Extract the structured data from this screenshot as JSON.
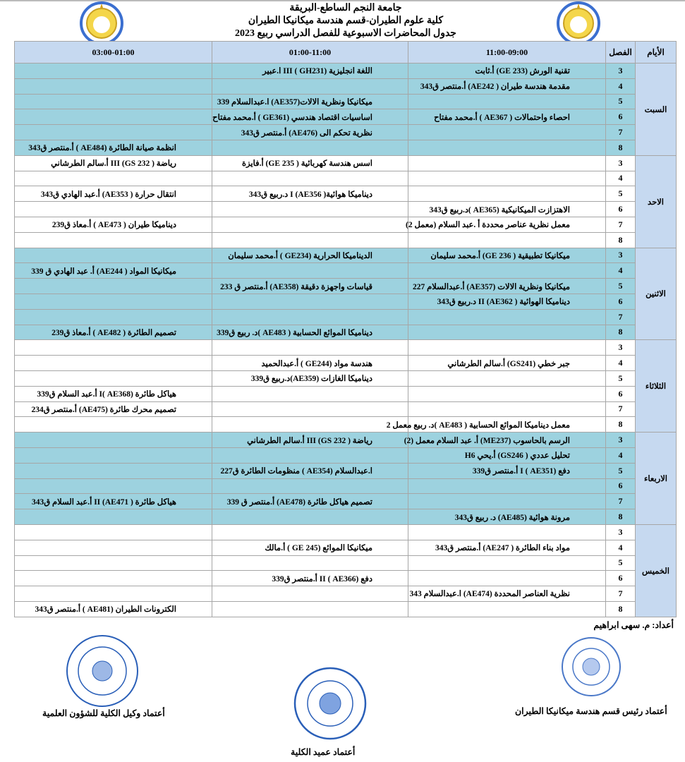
{
  "header": {
    "university": "جامعة النجم الساطع-البريقة",
    "faculty": "كلية علوم الطيران-قسم هندسة ميكانيكا الطيران",
    "title": "جدول المحاضرات الاسبوعية للفصل الدراسي ربيع 2023"
  },
  "table": {
    "headers": {
      "day": "الأيام",
      "period": "الفصل",
      "slot1": "11:00-09:00",
      "slot2": "01:00-11:00",
      "slot3": "03:00-01:00"
    },
    "days": [
      {
        "name": "السبت",
        "rows": [
          {
            "p": "3",
            "s1": "تقنية الورش (GE 233) أ.ثابت",
            "s2": "اللغة انجليزية (GH231 ) III ا.عبير",
            "s3": ""
          },
          {
            "p": "4",
            "s1": "مقدمة هندسة طيران ( AE242) أ.منتصر ق343",
            "s2": "",
            "s3": ""
          },
          {
            "p": "5",
            "s1": "",
            "s2": "ميكانيكا ونظرية الالات(AE357) ا.عبدالسلام 339",
            "s3": ""
          },
          {
            "p": "6",
            "s1": "احصاء واحتمالات ( AE367 ) أ.محمد مفتاح",
            "s2": "اساسيات اقتصاد هندسي (GE361 ) أ.محمد مفتاح",
            "s3": ""
          },
          {
            "p": "7",
            "s1": "",
            "s2": "نظرية تحكم الى (AE476) أ.منتصر ق343",
            "s3": ""
          },
          {
            "p": "8",
            "s1": "",
            "s2": "",
            "s3": "انظمة صيانة الطائرة (AE484 ) أ.منتصر ق343"
          }
        ]
      },
      {
        "name": "الاحد",
        "rows": [
          {
            "p": "3",
            "s1": "",
            "s2": "اسس هندسة كهربائية ( GE 235) أ.فايزة",
            "s3": "رياضة ( GS 232) III أ.سالم الطرشاني"
          },
          {
            "p": "4",
            "s1": "",
            "s2": "",
            "s3": ""
          },
          {
            "p": "5",
            "s1": "",
            "s2": "ديناميكا هوائية( AE356) I د.ربيع ق343",
            "s3": "انتقال حرارة ( AE353) أ.عبد الهادي ق343"
          },
          {
            "p": "6",
            "s1": "الاهتزازت الميكانيكية (AE365 )د.ربيع ق343",
            "s2": "",
            "s3": ""
          },
          {
            "p": "7",
            "s1": "معمل نظرية عناصر محددة أ .عبد السلام (معمل 2)",
            "s2": "",
            "s3": "ديناميكا طيران ( AE473 ) أ.معاذ ق239"
          },
          {
            "p": "8",
            "s1": "",
            "s2": "",
            "s3": ""
          }
        ]
      },
      {
        "name": "الاثنين",
        "rows": [
          {
            "p": "3",
            "s1": "ميكانيكا تطبيقية ( GE 236) أ.محمد سليمان",
            "s2": "الديناميكا الحرارية (GE234 ) أ.محمد سليمان",
            "s3": ""
          },
          {
            "p": "4",
            "s1": "",
            "s2": "",
            "s3": "ميكانيكا المواد ( AE244) أ. عبد الهادي ق 339"
          },
          {
            "p": "5",
            "s1": "ميكانيكا ونظرية الالات (AE357) أ.عبدالسلام 227",
            "s2": "قياسات واجهزة دقيقة (AE358) أ.منتصر ق 233",
            "s3": ""
          },
          {
            "p": "6",
            "s1": "ديناميكا الهوائية ( AE362) II د.ربيع ق343",
            "s2": "",
            "s3": ""
          },
          {
            "p": "7",
            "s1": "",
            "s2": "",
            "s3": ""
          },
          {
            "p": "8",
            "s1": "",
            "s2": "ديناميكا الموائع الحسابية ( AE483 )د. ربيع ق339",
            "s3": "تصميم الطائرة ( AE482 ) أ.معاذ ق239"
          }
        ]
      },
      {
        "name": "الثلاثاء",
        "rows": [
          {
            "p": "3",
            "s1": "",
            "s2": "",
            "s3": ""
          },
          {
            "p": "4",
            "s1": "جبر خطي (GS241) أ.سالم الطرشاني",
            "s2": "هندسة مواد (GE244 ) أ.عبدالحميد",
            "s3": ""
          },
          {
            "p": "5",
            "s1": "",
            "s2": "ديناميكا الغازات (AE359)د.ربيع ق339",
            "s3": ""
          },
          {
            "p": "6",
            "s1": "",
            "s2": "",
            "s3": "هياكل طائرة (AE368 )I أ.عبد السلام ق339"
          },
          {
            "p": "7",
            "s1": "",
            "s2": "",
            "s3": "تصميم محرك طائرة (AE475) أ.منتصر ق234"
          },
          {
            "p": "8",
            "s1": "معمل ديناميكا الموائع الحسابية ( AE483 )د. ربيع معمل 2",
            "s2": "",
            "s3": ""
          }
        ]
      },
      {
        "name": "الاربعاء",
        "rows": [
          {
            "p": "3",
            "s1": "الرسم بالحاسوب (ME237) أ. عبد السلام معمل (2)",
            "s2": "رياضة ( GS 232) III أ.سالم الطرشاني",
            "s3": ""
          },
          {
            "p": "4",
            "s1": "تحليل عددي ( GS246) أ.يحي H6",
            "s2": "",
            "s3": ""
          },
          {
            "p": "5",
            "s1": "دفع (AE351 ) I أ.منتصر ق339",
            "s2": "ا.عبدالسلام (AE354 ) منظومات الطائرة ق227",
            "s3": ""
          },
          {
            "p": "6",
            "s1": "",
            "s2": "",
            "s3": ""
          },
          {
            "p": "7",
            "s1": "",
            "s2": "تصميم هياكل طائرة (AE478) أ.منتصر ق 339",
            "s3": "هياكل طائرة ( AE471) II أ.عبد السلام ق343"
          },
          {
            "p": "8",
            "s1": "مرونة هوائية (AE485) د. ربيع ق343",
            "s2": "",
            "s3": ""
          }
        ]
      },
      {
        "name": "الخميس",
        "rows": [
          {
            "p": "3",
            "s1": "",
            "s2": "",
            "s3": ""
          },
          {
            "p": "4",
            "s1": "مواد بناء الطائرة ( AE247) أ.منتصر ق343",
            "s2": "ميكانيكا الموائع (GE 245 ) أ.مالك",
            "s3": ""
          },
          {
            "p": "5",
            "s1": "",
            "s2": "",
            "s3": ""
          },
          {
            "p": "6",
            "s1": "",
            "s2": "دفع (AE366 ) II أ.منتصر ق339",
            "s3": ""
          },
          {
            "p": "7",
            "s1": "نظرية العناصر المحددة (AE474) ا.عبدالسلام 343",
            "s2": "",
            "s3": ""
          },
          {
            "p": "8",
            "s1": "",
            "s2": "",
            "s3": "الكترونات الطيران (AE481 ) أ.منتصر ق343"
          }
        ]
      }
    ]
  },
  "footer": {
    "prepared_by": "أعداد: م. سهى ابراهيم",
    "dept_head_approval": "أعتماد رئيس قسم هندسة ميكانيكا الطيران",
    "vice_dean_approval": "أعتماد وكيل الكلية للشؤون العلمية",
    "dean_approval": "أعتماد عميد الكلية"
  },
  "colors": {
    "header_bg": "#c6d9f0",
    "teal_row": "#9dd2df",
    "stamp_blue": "#2a5fb8"
  }
}
